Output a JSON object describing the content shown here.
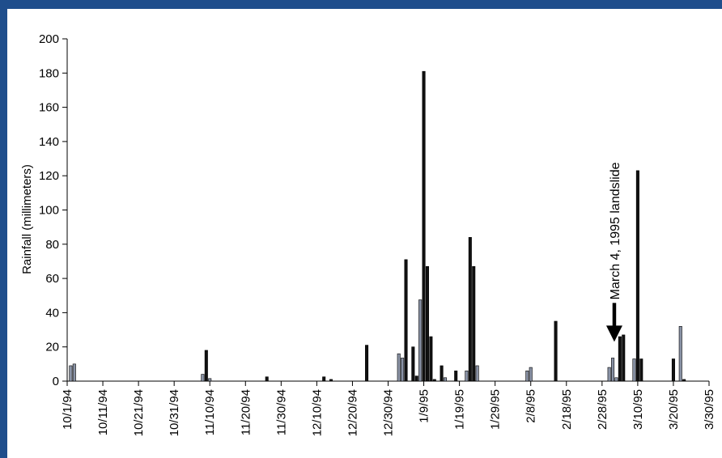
{
  "chart_data": {
    "type": "bar",
    "title": "",
    "xlabel": "",
    "ylabel": "Rainfall (millimeters)",
    "ylim": [
      0,
      200
    ],
    "yticks": [
      0,
      20,
      40,
      60,
      80,
      100,
      120,
      140,
      160,
      180,
      200
    ],
    "x_range": [
      "10/1/94",
      "3/30/95"
    ],
    "x_tick_labels": [
      "10/1/94",
      "10/11/94",
      "10/21/94",
      "10/31/94",
      "11/10/94",
      "11/20/94",
      "11/30/94",
      "12/10/94",
      "12/20/94",
      "12/30/94",
      "1/9/95",
      "1/19/95",
      "1/29/95",
      "2/8/95",
      "2/18/95",
      "2/28/95",
      "3/10/95",
      "3/20/95",
      "3/30/95"
    ],
    "grid": false,
    "legend": "none",
    "bar_colors": {
      "dark": "#111111",
      "light": "#8a93a6"
    },
    "series": [
      {
        "values": [
          {
            "date": "10/2/94",
            "value": 9,
            "shade": "light"
          },
          {
            "date": "10/3/94",
            "value": 10,
            "shade": "light"
          },
          {
            "date": "11/8/94",
            "value": 4,
            "shade": "light"
          },
          {
            "date": "11/9/94",
            "value": 18,
            "shade": "dark"
          },
          {
            "date": "11/10/94",
            "value": 1.5,
            "shade": "light"
          },
          {
            "date": "11/26/94",
            "value": 2.5,
            "shade": "dark"
          },
          {
            "date": "12/12/94",
            "value": 2.5,
            "shade": "dark"
          },
          {
            "date": "12/14/94",
            "value": 1,
            "shade": "dark"
          },
          {
            "date": "12/24/94",
            "value": 21,
            "shade": "dark"
          },
          {
            "date": "1/2/95",
            "value": 16,
            "shade": "light"
          },
          {
            "date": "1/3/95",
            "value": 13.5,
            "shade": "light"
          },
          {
            "date": "1/4/95",
            "value": 71,
            "shade": "dark"
          },
          {
            "date": "1/6/95",
            "value": 20,
            "shade": "dark"
          },
          {
            "date": "1/7/95",
            "value": 3,
            "shade": "dark"
          },
          {
            "date": "1/8/95",
            "value": 47.5,
            "shade": "light"
          },
          {
            "date": "1/9/95",
            "value": 181,
            "shade": "dark"
          },
          {
            "date": "1/10/95",
            "value": 67,
            "shade": "dark"
          },
          {
            "date": "1/11/95",
            "value": 26,
            "shade": "dark"
          },
          {
            "date": "1/12/95",
            "value": 1,
            "shade": "dark"
          },
          {
            "date": "1/14/95",
            "value": 9,
            "shade": "dark"
          },
          {
            "date": "1/15/95",
            "value": 2,
            "shade": "light"
          },
          {
            "date": "1/18/95",
            "value": 6,
            "shade": "dark"
          },
          {
            "date": "1/21/95",
            "value": 6,
            "shade": "light"
          },
          {
            "date": "1/22/95",
            "value": 84,
            "shade": "dark"
          },
          {
            "date": "1/23/95",
            "value": 67,
            "shade": "dark"
          },
          {
            "date": "1/24/95",
            "value": 9,
            "shade": "light"
          },
          {
            "date": "2/7/95",
            "value": 6,
            "shade": "light"
          },
          {
            "date": "2/8/95",
            "value": 8,
            "shade": "light"
          },
          {
            "date": "2/15/95",
            "value": 35,
            "shade": "dark"
          },
          {
            "date": "3/2/95",
            "value": 8,
            "shade": "light"
          },
          {
            "date": "3/3/95",
            "value": 13.5,
            "shade": "light"
          },
          {
            "date": "3/4/95",
            "value": 2,
            "shade": "light"
          },
          {
            "date": "3/5/95",
            "value": 26,
            "shade": "dark"
          },
          {
            "date": "3/6/95",
            "value": 27,
            "shade": "dark"
          },
          {
            "date": "3/9/95",
            "value": 13,
            "shade": "light"
          },
          {
            "date": "3/10/95",
            "value": 123,
            "shade": "dark"
          },
          {
            "date": "3/11/95",
            "value": 13,
            "shade": "dark"
          },
          {
            "date": "3/20/95",
            "value": 13,
            "shade": "dark"
          },
          {
            "date": "3/22/95",
            "value": 32,
            "shade": "light"
          },
          {
            "date": "3/23/95",
            "value": 1,
            "shade": "dark"
          }
        ]
      }
    ],
    "annotation": {
      "text": "March 4, 1995 landslide",
      "date": "3/4/95",
      "value": 23
    }
  }
}
